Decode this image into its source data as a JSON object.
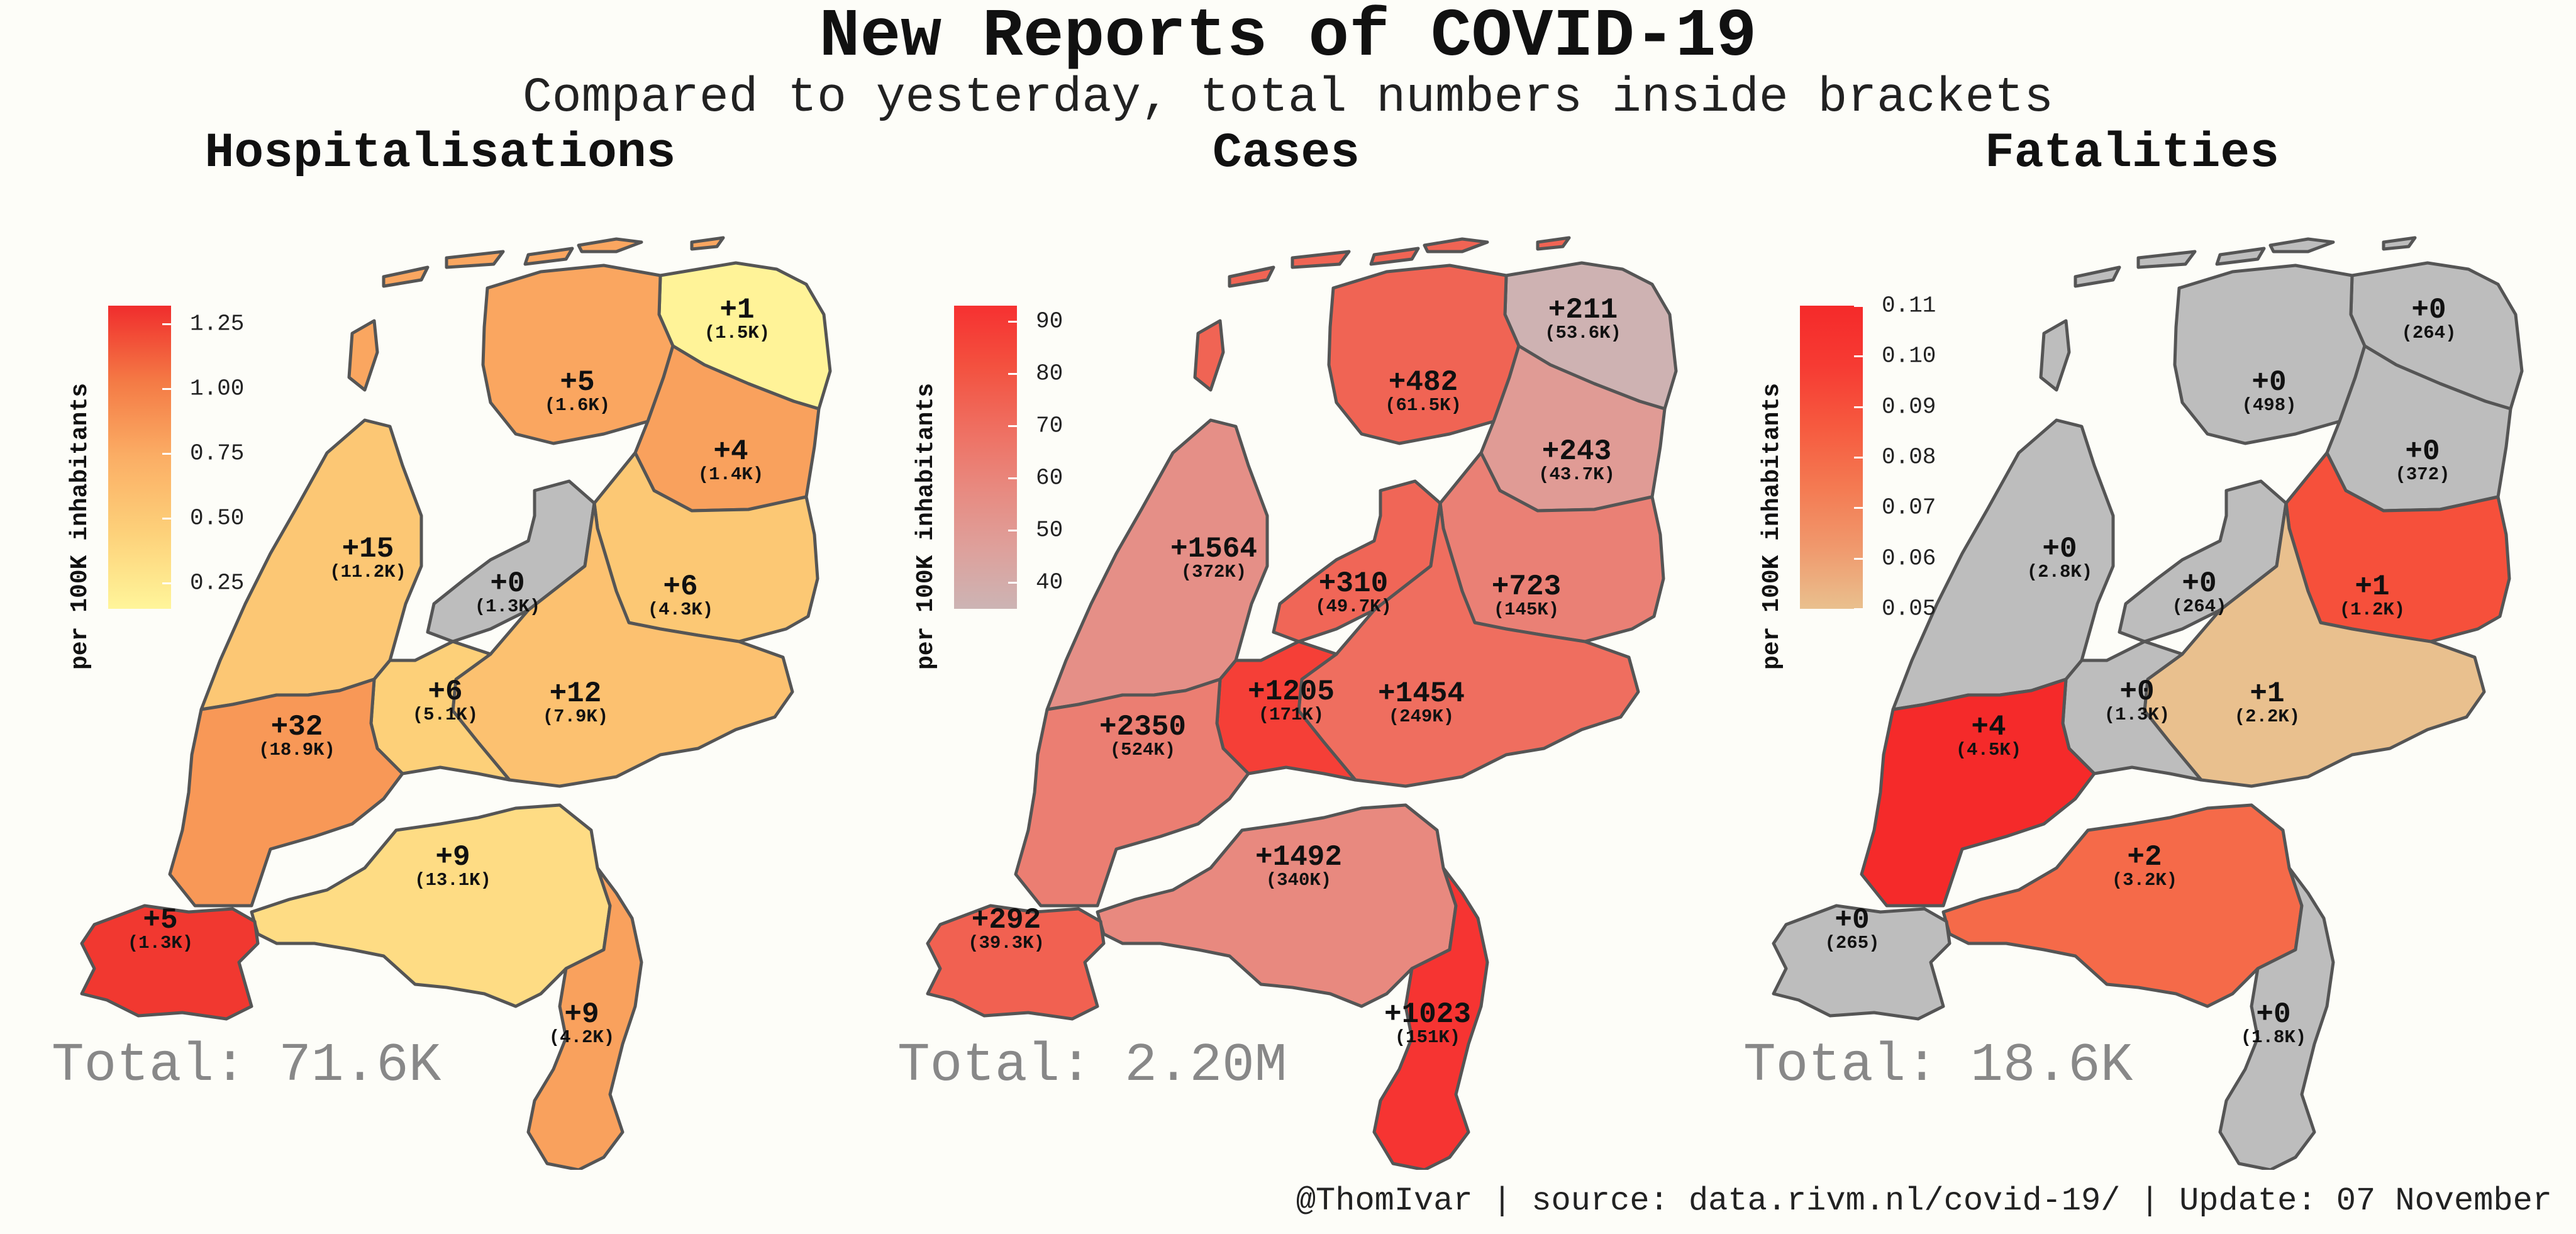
{
  "header": {
    "title": "New Reports of COVID-19",
    "subtitle": "Compared to yesterday, total numbers inside brackets"
  },
  "footer": {
    "handle": "@ThomIvar",
    "source": "source: data.rivm.nl/covid-19/",
    "update": "Update: 07 November"
  },
  "chart_data": [
    {
      "type": "choropleth",
      "title": "Hospitalisations",
      "total_label": "Total: 71.6K",
      "legend": {
        "title": "per 100K inhabitants",
        "min": 0.15,
        "max": 1.32,
        "ticks": [
          0.25,
          0.5,
          0.75,
          1.0,
          1.25
        ],
        "tick_labels": [
          "0.25",
          "0.50",
          "0.75",
          "1.00",
          "1.25"
        ],
        "colors": [
          "#fff59a",
          "#fdd17a",
          "#fbae65",
          "#f47a45",
          "#f02d2d"
        ]
      },
      "regions": [
        {
          "id": "groningen",
          "label": "+1",
          "total": "(1.5K)",
          "value": 0.17
        },
        {
          "id": "friesland",
          "label": "+5",
          "total": "(1.6K)",
          "value": 0.78
        },
        {
          "id": "drenthe",
          "label": "+4",
          "total": "(1.4K)",
          "value": 0.81
        },
        {
          "id": "noord-holland",
          "label": "+15",
          "total": "(11.2K)",
          "value": 0.53
        },
        {
          "id": "flevoland",
          "label": "+0",
          "total": "(1.3K)",
          "value": null
        },
        {
          "id": "overijssel",
          "label": "+6",
          "total": "(4.3K)",
          "value": 0.52
        },
        {
          "id": "gelderland",
          "label": "+12",
          "total": "(7.9K)",
          "value": 0.58
        },
        {
          "id": "utrecht",
          "label": "+6",
          "total": "(5.1K)",
          "value": 0.45
        },
        {
          "id": "zuid-holland",
          "label": "+32",
          "total": "(18.9K)",
          "value": 0.86
        },
        {
          "id": "noord-brabant",
          "label": "+9",
          "total": "(13.1K)",
          "value": 0.35
        },
        {
          "id": "zeeland",
          "label": "+5",
          "total": "(1.3K)",
          "value": 1.28
        },
        {
          "id": "limburg",
          "label": "+9",
          "total": "(4.2K)",
          "value": 0.81
        }
      ]
    },
    {
      "type": "choropleth",
      "title": "Cases",
      "total_label": "Total: 2.20M",
      "legend": {
        "title": "per 100K inhabitants",
        "min": 35,
        "max": 93,
        "ticks": [
          40,
          50,
          60,
          70,
          80,
          90
        ],
        "tick_labels": [
          "40",
          "50",
          "60",
          "70",
          "80",
          "90"
        ],
        "colors": [
          "#ccb4b4",
          "#dea09b",
          "#e8897f",
          "#ef6e60",
          "#f3513f",
          "#f63131"
        ]
      },
      "regions": [
        {
          "id": "groningen",
          "label": "+211",
          "total": "(53.6K)",
          "value": 36
        },
        {
          "id": "friesland",
          "label": "+482",
          "total": "(61.5K)",
          "value": 74
        },
        {
          "id": "drenthe",
          "label": "+243",
          "total": "(43.7K)",
          "value": 49
        },
        {
          "id": "noord-holland",
          "label": "+1564",
          "total": "(372K)",
          "value": 55
        },
        {
          "id": "flevoland",
          "label": "+310",
          "total": "(49.7K)",
          "value": 73
        },
        {
          "id": "overijssel",
          "label": "+723",
          "total": "(145K)",
          "value": 62
        },
        {
          "id": "gelderland",
          "label": "+1454",
          "total": "(249K)",
          "value": 70
        },
        {
          "id": "utrecht",
          "label": "+1205",
          "total": "(171K)",
          "value": 88
        },
        {
          "id": "zuid-holland",
          "label": "+2350",
          "total": "(524K)",
          "value": 63
        },
        {
          "id": "noord-brabant",
          "label": "+1492",
          "total": "(340K)",
          "value": 58
        },
        {
          "id": "zeeland",
          "label": "+292",
          "total": "(39.3K)",
          "value": 75
        },
        {
          "id": "limburg",
          "label": "+1023",
          "total": "(151K)",
          "value": 92
        }
      ]
    },
    {
      "type": "choropleth",
      "title": "Fatalities",
      "total_label": "Total: 18.6K",
      "legend": {
        "title": "per 100K inhabitants",
        "min": 0.05,
        "max": 0.11,
        "ticks": [
          0.05,
          0.06,
          0.07,
          0.08,
          0.09,
          0.1,
          0.11
        ],
        "tick_labels": [
          "0.05",
          "0.06",
          "0.07",
          "0.08",
          "0.09",
          "0.10",
          "0.11"
        ],
        "colors": [
          "#e9c08e",
          "#f0996d",
          "#f47a52",
          "#f65a3f",
          "#f63b33",
          "#f52a2a"
        ]
      },
      "regions": [
        {
          "id": "groningen",
          "label": "+0",
          "total": "(264)",
          "value": null
        },
        {
          "id": "friesland",
          "label": "+0",
          "total": "(498)",
          "value": null
        },
        {
          "id": "drenthe",
          "label": "+0",
          "total": "(372)",
          "value": null
        },
        {
          "id": "noord-holland",
          "label": "+0",
          "total": "(2.8K)",
          "value": null
        },
        {
          "id": "flevoland",
          "label": "+0",
          "total": "(264)",
          "value": null
        },
        {
          "id": "overijssel",
          "label": "+1",
          "total": "(1.2K)",
          "value": 0.09
        },
        {
          "id": "gelderland",
          "label": "+1",
          "total": "(2.2K)",
          "value": 0.05
        },
        {
          "id": "utrecht",
          "label": "+0",
          "total": "(1.3K)",
          "value": null
        },
        {
          "id": "zuid-holland",
          "label": "+4",
          "total": "(4.5K)",
          "value": 0.11
        },
        {
          "id": "noord-brabant",
          "label": "+2",
          "total": "(3.2K)",
          "value": 0.08
        },
        {
          "id": "zeeland",
          "label": "+0",
          "total": "(265)",
          "value": null
        },
        {
          "id": "limburg",
          "label": "+0",
          "total": "(1.8K)",
          "value": null
        }
      ]
    }
  ]
}
